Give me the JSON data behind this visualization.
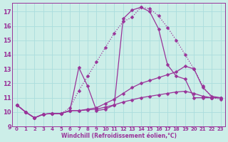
{
  "xlabel": "Windchill (Refroidissement éolien,°C)",
  "bg_color": "#cceee8",
  "line_color": "#993399",
  "grid_color": "#aadddd",
  "xlim": [
    -0.5,
    23.5
  ],
  "ylim": [
    9,
    17.6
  ],
  "yticks": [
    9,
    10,
    11,
    12,
    13,
    14,
    15,
    16,
    17
  ],
  "xticks": [
    0,
    1,
    2,
    3,
    4,
    5,
    6,
    7,
    8,
    9,
    10,
    11,
    12,
    13,
    14,
    15,
    16,
    17,
    18,
    19,
    20,
    21,
    22,
    23
  ],
  "curves": [
    {
      "x": [
        0,
        1,
        2,
        3,
        4,
        5,
        6,
        7,
        8,
        9,
        10,
        11,
        12,
        13,
        14,
        15,
        16,
        17,
        18,
        19,
        20,
        21,
        22,
        23
      ],
      "y": [
        10.5,
        10.0,
        9.6,
        9.85,
        9.9,
        9.9,
        10.3,
        11.5,
        12.5,
        13.5,
        14.5,
        15.5,
        16.3,
        16.6,
        17.3,
        17.2,
        16.7,
        15.9,
        15.0,
        14.0,
        13.0,
        11.8,
        11.0,
        10.9
      ],
      "marker": "D",
      "markersize": 2.5,
      "linestyle": ":",
      "linewidth": 0.9
    },
    {
      "x": [
        0,
        1,
        2,
        3,
        4,
        5,
        6,
        7,
        8,
        9,
        10,
        11,
        12,
        13,
        14,
        15,
        16,
        17,
        18,
        19,
        20,
        21,
        22,
        23
      ],
      "y": [
        10.5,
        10.0,
        9.6,
        9.85,
        9.9,
        9.9,
        10.1,
        13.1,
        11.8,
        10.1,
        10.2,
        10.5,
        16.5,
        17.1,
        17.3,
        17.0,
        15.8,
        13.3,
        12.5,
        12.3,
        11.0,
        11.0,
        11.0,
        11.0
      ],
      "marker": "D",
      "markersize": 2.5,
      "linestyle": "-",
      "linewidth": 0.9
    },
    {
      "x": [
        0,
        1,
        2,
        3,
        4,
        5,
        6,
        7,
        8,
        9,
        10,
        11,
        12,
        13,
        14,
        15,
        16,
        17,
        18,
        19,
        20,
        21,
        22,
        23
      ],
      "y": [
        10.5,
        10.0,
        9.6,
        9.85,
        9.9,
        9.9,
        10.1,
        10.1,
        10.2,
        10.3,
        10.6,
        10.9,
        11.3,
        11.7,
        12.0,
        12.2,
        12.4,
        12.6,
        12.8,
        13.2,
        13.0,
        11.7,
        11.1,
        11.0
      ],
      "marker": "D",
      "markersize": 2.5,
      "linestyle": "-",
      "linewidth": 0.9
    },
    {
      "x": [
        0,
        1,
        2,
        3,
        4,
        5,
        6,
        7,
        8,
        9,
        10,
        11,
        12,
        13,
        14,
        15,
        16,
        17,
        18,
        19,
        20,
        21,
        22,
        23
      ],
      "y": [
        10.5,
        10.0,
        9.6,
        9.85,
        9.9,
        9.9,
        10.1,
        10.1,
        10.15,
        10.2,
        10.35,
        10.5,
        10.7,
        10.85,
        11.0,
        11.1,
        11.2,
        11.3,
        11.4,
        11.45,
        11.3,
        11.1,
        11.0,
        11.0
      ],
      "marker": "D",
      "markersize": 2.5,
      "linestyle": "-",
      "linewidth": 0.9
    }
  ]
}
